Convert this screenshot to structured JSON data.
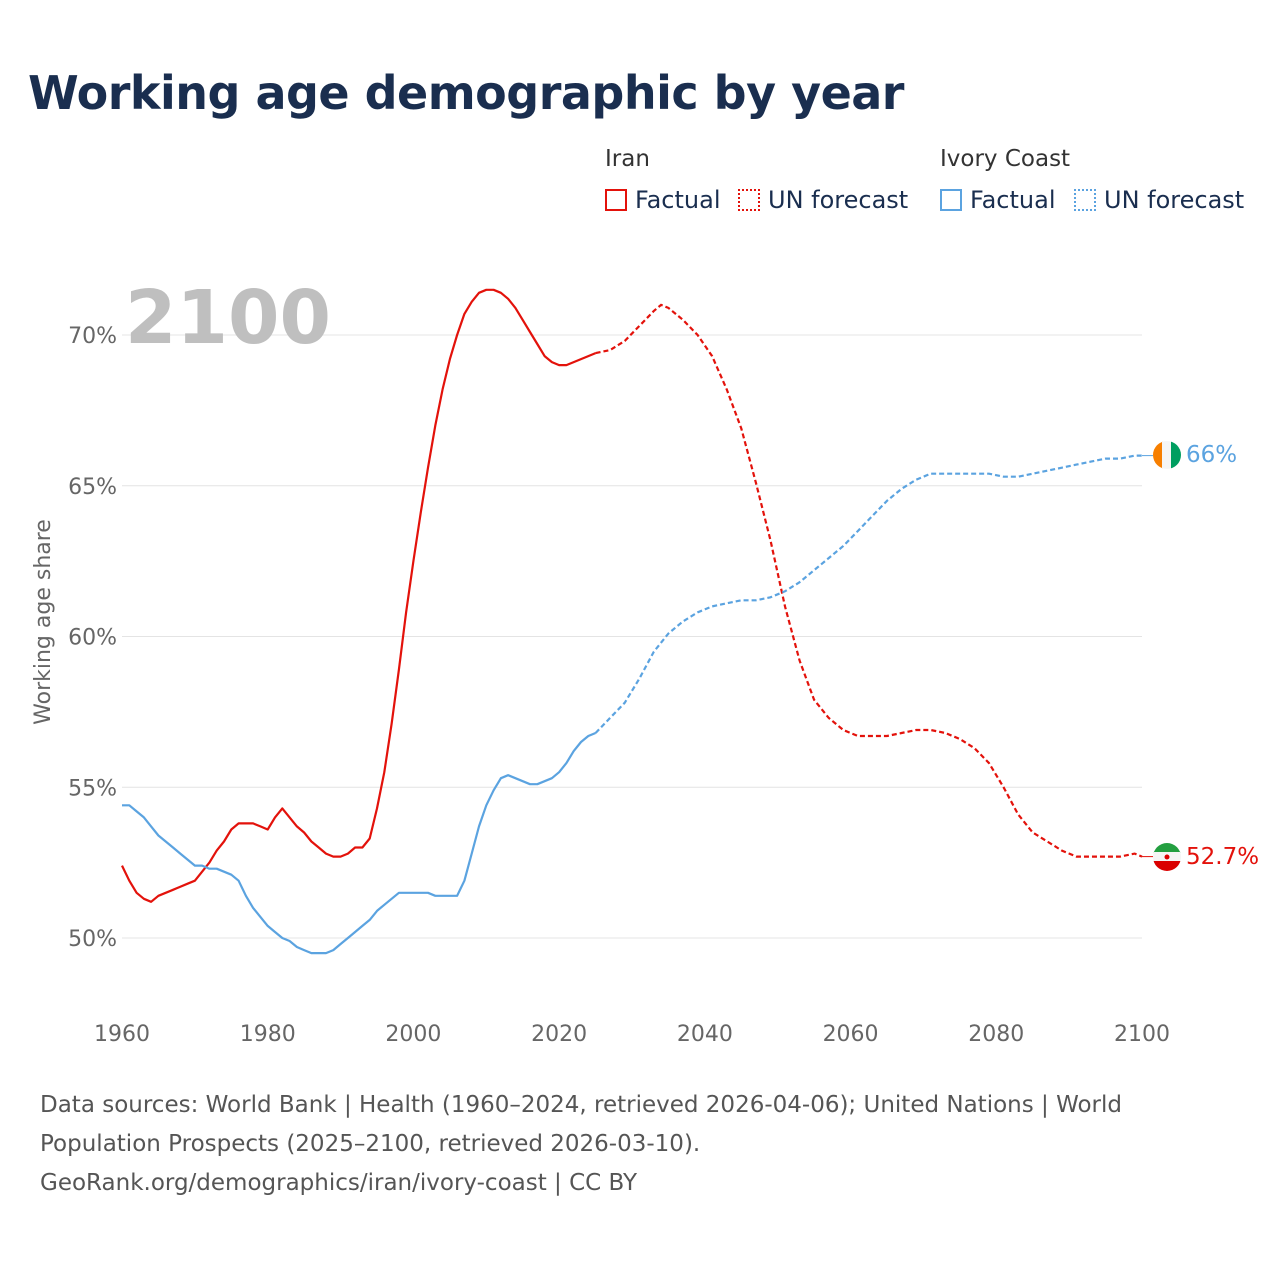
{
  "title": "Working age demographic by year",
  "legend": {
    "groups": [
      {
        "name": "Iran",
        "color": "#e3120b",
        "factual_label": "Factual",
        "forecast_label": "UN forecast"
      },
      {
        "name": "Ivory Coast",
        "color": "#5ba3e0",
        "factual_label": "Factual",
        "forecast_label": "UN forecast"
      }
    ]
  },
  "year_watermark": "2100",
  "footer": {
    "sources": "Data sources: World Bank | Health (1960–2024, retrieved 2026-04-06); United Nations | World Population Prospects (2025–2100, retrieved 2026-03-10).",
    "credit": "GeoRank.org/demographics/iran/ivory-coast | CC BY"
  },
  "chart_data": {
    "type": "line",
    "title": "Working age demographic by year",
    "xlabel": "",
    "ylabel": "Working age share",
    "xlim": [
      1960,
      2100
    ],
    "ylim": [
      48,
      72.5
    ],
    "x_ticks": [
      1960,
      1980,
      2000,
      2020,
      2040,
      2060,
      2080,
      2100
    ],
    "y_ticks": [
      50,
      55,
      60,
      65,
      70
    ],
    "y_tick_labels": [
      "50%",
      "55%",
      "60%",
      "65%",
      "70%"
    ],
    "x_tick_labels": [
      "1960",
      "1980",
      "2000",
      "2020",
      "2040",
      "2060",
      "2080",
      "2100"
    ],
    "grid": true,
    "series": [
      {
        "name": "Iran",
        "color": "#e3120b",
        "end_label": "52.7%",
        "factual": [
          [
            1960,
            52.4
          ],
          [
            1961,
            51.9
          ],
          [
            1962,
            51.5
          ],
          [
            1963,
            51.3
          ],
          [
            1964,
            51.2
          ],
          [
            1965,
            51.4
          ],
          [
            1966,
            51.5
          ],
          [
            1967,
            51.6
          ],
          [
            1968,
            51.7
          ],
          [
            1969,
            51.8
          ],
          [
            1970,
            51.9
          ],
          [
            1971,
            52.2
          ],
          [
            1972,
            52.5
          ],
          [
            1973,
            52.9
          ],
          [
            1974,
            53.2
          ],
          [
            1975,
            53.6
          ],
          [
            1976,
            53.8
          ],
          [
            1977,
            53.8
          ],
          [
            1978,
            53.8
          ],
          [
            1979,
            53.7
          ],
          [
            1980,
            53.6
          ],
          [
            1981,
            54.0
          ],
          [
            1982,
            54.3
          ],
          [
            1983,
            54.0
          ],
          [
            1984,
            53.7
          ],
          [
            1985,
            53.5
          ],
          [
            1986,
            53.2
          ],
          [
            1987,
            53.0
          ],
          [
            1988,
            52.8
          ],
          [
            1989,
            52.7
          ],
          [
            1990,
            52.7
          ],
          [
            1991,
            52.8
          ],
          [
            1992,
            53.0
          ],
          [
            1993,
            53.0
          ],
          [
            1994,
            53.3
          ],
          [
            1995,
            54.3
          ],
          [
            1996,
            55.5
          ],
          [
            1997,
            57.1
          ],
          [
            1998,
            58.9
          ],
          [
            1999,
            60.8
          ],
          [
            2000,
            62.5
          ],
          [
            2001,
            64.1
          ],
          [
            2002,
            65.6
          ],
          [
            2003,
            67.0
          ],
          [
            2004,
            68.2
          ],
          [
            2005,
            69.2
          ],
          [
            2006,
            70.0
          ],
          [
            2007,
            70.7
          ],
          [
            2008,
            71.1
          ],
          [
            2009,
            71.4
          ],
          [
            2010,
            71.5
          ],
          [
            2011,
            71.5
          ],
          [
            2012,
            71.4
          ],
          [
            2013,
            71.2
          ],
          [
            2014,
            70.9
          ],
          [
            2015,
            70.5
          ],
          [
            2016,
            70.1
          ],
          [
            2017,
            69.7
          ],
          [
            2018,
            69.3
          ],
          [
            2019,
            69.1
          ],
          [
            2020,
            69.0
          ],
          [
            2021,
            69.0
          ],
          [
            2022,
            69.1
          ],
          [
            2023,
            69.2
          ],
          [
            2024,
            69.3
          ],
          [
            2025,
            69.4
          ]
        ],
        "forecast": [
          [
            2025,
            69.4
          ],
          [
            2027,
            69.5
          ],
          [
            2029,
            69.8
          ],
          [
            2031,
            70.3
          ],
          [
            2033,
            70.8
          ],
          [
            2034,
            71.0
          ],
          [
            2035,
            70.9
          ],
          [
            2037,
            70.5
          ],
          [
            2039,
            70.0
          ],
          [
            2041,
            69.3
          ],
          [
            2043,
            68.2
          ],
          [
            2045,
            66.9
          ],
          [
            2047,
            65.1
          ],
          [
            2049,
            63.2
          ],
          [
            2051,
            61.0
          ],
          [
            2053,
            59.2
          ],
          [
            2055,
            57.9
          ],
          [
            2057,
            57.3
          ],
          [
            2059,
            56.9
          ],
          [
            2061,
            56.7
          ],
          [
            2063,
            56.7
          ],
          [
            2065,
            56.7
          ],
          [
            2067,
            56.8
          ],
          [
            2069,
            56.9
          ],
          [
            2071,
            56.9
          ],
          [
            2073,
            56.8
          ],
          [
            2075,
            56.6
          ],
          [
            2077,
            56.3
          ],
          [
            2079,
            55.8
          ],
          [
            2081,
            55.0
          ],
          [
            2083,
            54.1
          ],
          [
            2085,
            53.5
          ],
          [
            2087,
            53.2
          ],
          [
            2089,
            52.9
          ],
          [
            2091,
            52.7
          ],
          [
            2093,
            52.7
          ],
          [
            2095,
            52.7
          ],
          [
            2097,
            52.7
          ],
          [
            2099,
            52.8
          ],
          [
            2100,
            52.7
          ]
        ]
      },
      {
        "name": "Ivory Coast",
        "color": "#5ba3e0",
        "end_label": "66%",
        "factual": [
          [
            1960,
            54.4
          ],
          [
            1961,
            54.4
          ],
          [
            1962,
            54.2
          ],
          [
            1963,
            54.0
          ],
          [
            1964,
            53.7
          ],
          [
            1965,
            53.4
          ],
          [
            1966,
            53.2
          ],
          [
            1967,
            53.0
          ],
          [
            1968,
            52.8
          ],
          [
            1969,
            52.6
          ],
          [
            1970,
            52.4
          ],
          [
            1971,
            52.4
          ],
          [
            1972,
            52.3
          ],
          [
            1973,
            52.3
          ],
          [
            1974,
            52.2
          ],
          [
            1975,
            52.1
          ],
          [
            1976,
            51.9
          ],
          [
            1977,
            51.4
          ],
          [
            1978,
            51.0
          ],
          [
            1979,
            50.7
          ],
          [
            1980,
            50.4
          ],
          [
            1981,
            50.2
          ],
          [
            1982,
            50.0
          ],
          [
            1983,
            49.9
          ],
          [
            1984,
            49.7
          ],
          [
            1985,
            49.6
          ],
          [
            1986,
            49.5
          ],
          [
            1987,
            49.5
          ],
          [
            1988,
            49.5
          ],
          [
            1989,
            49.6
          ],
          [
            1990,
            49.8
          ],
          [
            1991,
            50.0
          ],
          [
            1992,
            50.2
          ],
          [
            1993,
            50.4
          ],
          [
            1994,
            50.6
          ],
          [
            1995,
            50.9
          ],
          [
            1996,
            51.1
          ],
          [
            1997,
            51.3
          ],
          [
            1998,
            51.5
          ],
          [
            1999,
            51.5
          ],
          [
            2000,
            51.5
          ],
          [
            2001,
            51.5
          ],
          [
            2002,
            51.5
          ],
          [
            2003,
            51.4
          ],
          [
            2004,
            51.4
          ],
          [
            2005,
            51.4
          ],
          [
            2006,
            51.4
          ],
          [
            2007,
            51.9
          ],
          [
            2008,
            52.8
          ],
          [
            2009,
            53.7
          ],
          [
            2010,
            54.4
          ],
          [
            2011,
            54.9
          ],
          [
            2012,
            55.3
          ],
          [
            2013,
            55.4
          ],
          [
            2014,
            55.3
          ],
          [
            2015,
            55.2
          ],
          [
            2016,
            55.1
          ],
          [
            2017,
            55.1
          ],
          [
            2018,
            55.2
          ],
          [
            2019,
            55.3
          ],
          [
            2020,
            55.5
          ],
          [
            2021,
            55.8
          ],
          [
            2022,
            56.2
          ],
          [
            2023,
            56.5
          ],
          [
            2024,
            56.7
          ],
          [
            2025,
            56.8
          ]
        ],
        "forecast": [
          [
            2025,
            56.8
          ],
          [
            2027,
            57.3
          ],
          [
            2029,
            57.8
          ],
          [
            2031,
            58.6
          ],
          [
            2033,
            59.5
          ],
          [
            2035,
            60.1
          ],
          [
            2037,
            60.5
          ],
          [
            2039,
            60.8
          ],
          [
            2041,
            61.0
          ],
          [
            2043,
            61.1
          ],
          [
            2045,
            61.2
          ],
          [
            2047,
            61.2
          ],
          [
            2049,
            61.3
          ],
          [
            2051,
            61.5
          ],
          [
            2053,
            61.8
          ],
          [
            2055,
            62.2
          ],
          [
            2057,
            62.6
          ],
          [
            2059,
            63.0
          ],
          [
            2061,
            63.5
          ],
          [
            2063,
            64.0
          ],
          [
            2065,
            64.5
          ],
          [
            2067,
            64.9
          ],
          [
            2069,
            65.2
          ],
          [
            2071,
            65.4
          ],
          [
            2073,
            65.4
          ],
          [
            2075,
            65.4
          ],
          [
            2077,
            65.4
          ],
          [
            2079,
            65.4
          ],
          [
            2081,
            65.3
          ],
          [
            2083,
            65.3
          ],
          [
            2085,
            65.4
          ],
          [
            2087,
            65.5
          ],
          [
            2089,
            65.6
          ],
          [
            2091,
            65.7
          ],
          [
            2093,
            65.8
          ],
          [
            2095,
            65.9
          ],
          [
            2097,
            65.9
          ],
          [
            2099,
            66.0
          ],
          [
            2100,
            66.0
          ]
        ]
      }
    ]
  }
}
